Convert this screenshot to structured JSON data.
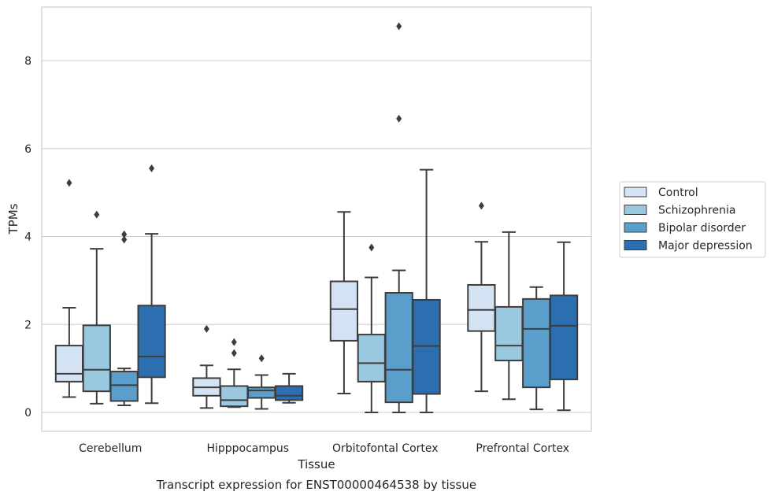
{
  "chart_data": {
    "type": "box",
    "xlabel": "Tissue",
    "ylabel": "TPMs",
    "caption": "Transcript expression for ENST00000464538 by tissue",
    "ylim": [
      -0.4,
      9.2
    ],
    "yticks": [
      0,
      2,
      4,
      6,
      8
    ],
    "grid": "horizontal",
    "legend_position": "right",
    "categories": [
      "Cerebellum",
      "Hipppocampus",
      "Orbitofontal Cortex",
      "Prefrontal Cortex"
    ],
    "series": [
      {
        "name": "Control",
        "color": "#d3e3f3",
        "boxes": [
          {
            "whislo": 0.35,
            "q1": 0.7,
            "med": 0.88,
            "q3": 1.52,
            "whishi": 2.38,
            "fliers": [
              5.22
            ]
          },
          {
            "whislo": 0.1,
            "q1": 0.38,
            "med": 0.57,
            "q3": 0.78,
            "whishi": 1.07,
            "fliers": [
              1.9
            ]
          },
          {
            "whislo": 0.43,
            "q1": 1.63,
            "med": 2.35,
            "q3": 2.98,
            "whishi": 4.56,
            "fliers": []
          },
          {
            "whislo": 0.48,
            "q1": 1.85,
            "med": 2.33,
            "q3": 2.9,
            "whishi": 3.88,
            "fliers": [
              4.7
            ]
          }
        ]
      },
      {
        "name": "Schizophrenia",
        "color": "#9ac8e0",
        "boxes": [
          {
            "whislo": 0.2,
            "q1": 0.48,
            "med": 0.97,
            "q3": 1.98,
            "whishi": 3.72,
            "fliers": [
              4.5
            ]
          },
          {
            "whislo": 0.12,
            "q1": 0.14,
            "med": 0.28,
            "q3": 0.6,
            "whishi": 0.98,
            "fliers": [
              1.35,
              1.6
            ]
          },
          {
            "whislo": 0.0,
            "q1": 0.7,
            "med": 1.12,
            "q3": 1.77,
            "whishi": 3.07,
            "fliers": [
              3.75
            ]
          },
          {
            "whislo": 0.3,
            "q1": 1.18,
            "med": 1.52,
            "q3": 2.4,
            "whishi": 4.1,
            "fliers": []
          }
        ]
      },
      {
        "name": "Bipolar disorder",
        "color": "#5a9ecc",
        "boxes": [
          {
            "whislo": 0.16,
            "q1": 0.26,
            "med": 0.62,
            "q3": 0.93,
            "whishi": 1.0,
            "fliers": [
              3.93,
              4.05
            ]
          },
          {
            "whislo": 0.08,
            "q1": 0.33,
            "med": 0.5,
            "q3": 0.57,
            "whishi": 0.85,
            "fliers": [
              1.23
            ]
          },
          {
            "whislo": 0.0,
            "q1": 0.23,
            "med": 0.97,
            "q3": 2.72,
            "whishi": 3.23,
            "fliers": [
              6.68,
              8.78
            ]
          },
          {
            "whislo": 0.07,
            "q1": 0.57,
            "med": 1.9,
            "q3": 2.58,
            "whishi": 2.85,
            "fliers": []
          }
        ]
      },
      {
        "name": "Major depression",
        "color": "#2c6fb0",
        "boxes": [
          {
            "whislo": 0.21,
            "q1": 0.8,
            "med": 1.27,
            "q3": 2.43,
            "whishi": 4.06,
            "fliers": [
              5.55
            ]
          },
          {
            "whislo": 0.22,
            "q1": 0.28,
            "med": 0.38,
            "q3": 0.6,
            "whishi": 0.88,
            "fliers": []
          },
          {
            "whislo": 0.0,
            "q1": 0.42,
            "med": 1.51,
            "q3": 2.56,
            "whishi": 5.52,
            "fliers": []
          },
          {
            "whislo": 0.05,
            "q1": 0.75,
            "med": 1.97,
            "q3": 2.66,
            "whishi": 3.87,
            "fliers": []
          }
        ]
      }
    ]
  }
}
